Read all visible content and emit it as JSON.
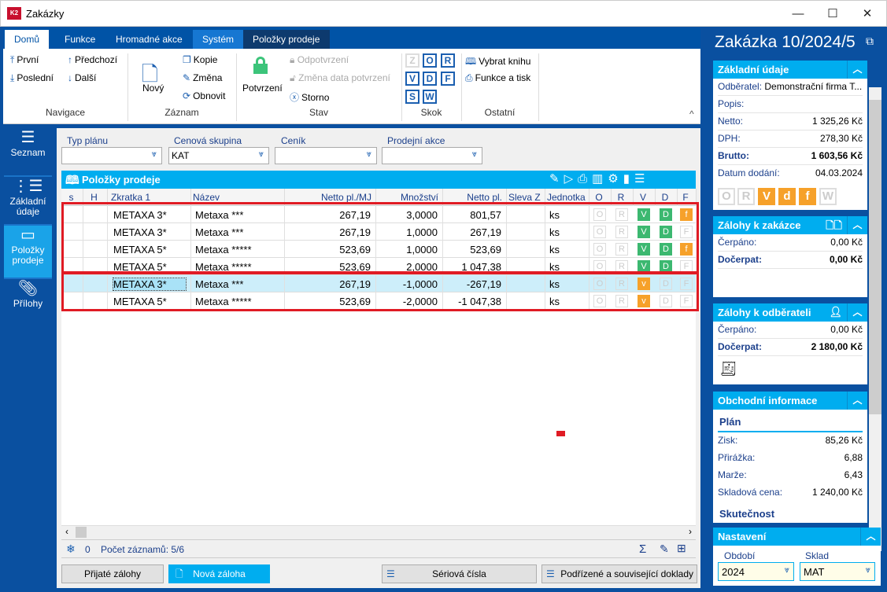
{
  "window": {
    "title": "Zakázky",
    "logo": "K2",
    "controls": [
      "minimize",
      "maximize",
      "close"
    ]
  },
  "ribbon": {
    "tabs": [
      "Domů",
      "Funkce",
      "Hromadné akce",
      "Systém",
      "Položky prodeje"
    ],
    "navigace": {
      "label": "Navigace",
      "items": [
        "První",
        "Poslední",
        "Předchozí",
        "Další"
      ]
    },
    "zaznam": {
      "label": "Záznam",
      "items": [
        "Nový",
        "Kopie",
        "Změna",
        "Obnovit"
      ]
    },
    "stav": {
      "label": "Stav",
      "items": [
        "Potvrzení",
        "Odpotvrzení",
        "Změna data potvrzení",
        "Storno"
      ]
    },
    "skok": {
      "label": "Skok",
      "items": [
        "Z",
        "O",
        "R",
        "V",
        "D",
        "F",
        "S",
        "W"
      ]
    },
    "ostatni": {
      "label": "Ostatní",
      "items": [
        "Vybrat knihu",
        "Funkce a tisk"
      ]
    }
  },
  "leftnav": [
    {
      "label": "Seznam",
      "icon": "hamburger-icon"
    },
    {
      "label": "Základní údaje",
      "icon": "list-icon"
    },
    {
      "label": "Položky prodeje",
      "icon": "box-icon",
      "active": true
    },
    {
      "label": "Přílohy",
      "icon": "paperclip-icon"
    }
  ],
  "filters": [
    {
      "label": "Typ plánu",
      "value": ""
    },
    {
      "label": "Cenová skupina",
      "value": "KAT"
    },
    {
      "label": "Ceník",
      "value": ""
    },
    {
      "label": "Prodejní akce",
      "value": ""
    }
  ],
  "grid": {
    "title": "Položky prodeje",
    "columns": [
      "s",
      "H",
      "Zkratka 1",
      "Název",
      "Netto pl./MJ",
      "Množství",
      "Netto pl.",
      "Sleva Z",
      "Jednotka",
      "O",
      "R",
      "V",
      "D",
      "F"
    ],
    "rows": [
      {
        "zkratka": "METAXA 3*",
        "nazev": "Metaxa ***",
        "mj": "267,19",
        "mnozstvi": "3,0000",
        "netto": "801,57",
        "jednotka": "ks",
        "v": "V",
        "d": "D",
        "f": "f",
        "f_on": true,
        "d_on": true,
        "v_color": "#3cb870"
      },
      {
        "zkratka": "METAXA 3*",
        "nazev": "Metaxa ***",
        "mj": "267,19",
        "mnozstvi": "1,0000",
        "netto": "267,19",
        "jednotka": "ks",
        "v": "V",
        "d": "D",
        "f": "F",
        "f_on": false,
        "d_on": true,
        "v_color": "#3cb870"
      },
      {
        "zkratka": "METAXA 5*",
        "nazev": "Metaxa *****",
        "mj": "523,69",
        "mnozstvi": "1,0000",
        "netto": "523,69",
        "jednotka": "ks",
        "v": "V",
        "d": "D",
        "f": "f",
        "f_on": true,
        "d_on": true,
        "v_color": "#3cb870"
      },
      {
        "zkratka": "METAXA 5*",
        "nazev": "Metaxa *****",
        "mj": "523,69",
        "mnozstvi": "2,0000",
        "netto": "1 047,38",
        "jednotka": "ks",
        "v": "V",
        "d": "D",
        "f": "F",
        "f_on": false,
        "d_on": true,
        "v_color": "#3cb870"
      },
      {
        "zkratka": "METAXA 3*",
        "nazev": "Metaxa ***",
        "mj": "267,19",
        "mnozstvi": "-1,0000",
        "netto": "-267,19",
        "jednotka": "ks",
        "v": "v",
        "d": "D",
        "f": "F",
        "f_on": false,
        "d_on": false,
        "v_color": "#f6a12a",
        "selected": true
      },
      {
        "zkratka": "METAXA 5*",
        "nazev": "Metaxa *****",
        "mj": "523,69",
        "mnozstvi": "-2,0000",
        "netto": "-1 047,38",
        "jednotka": "ks",
        "v": "v",
        "d": "D",
        "f": "F",
        "f_on": false,
        "d_on": false,
        "v_color": "#f6a12a"
      }
    ],
    "status": {
      "filter_count": "0",
      "records": "Počet záznamů: 5/6"
    }
  },
  "buttons": {
    "prijate": "Přijaté zálohy",
    "nova": "Nová záloha",
    "seriova": "Sériová čísla",
    "podrizene": "Podřízené a související doklady"
  },
  "right": {
    "title": "Zakázka 10/2024/5",
    "zakladni": {
      "header": "Základní údaje",
      "odberatel_k": "Odběratel:",
      "odberatel_v": "Demonstrační firma T...",
      "popis_k": "Popis:",
      "netto_k": "Netto:",
      "netto_v": "1 325,26 Kč",
      "dph_k": "DPH:",
      "dph_v": "278,30 Kč",
      "brutto_k": "Brutto:",
      "brutto_v": "1 603,56 Kč",
      "datum_k": "Datum dodání:",
      "datum_v": "04.03.2024",
      "states": [
        "O",
        "R",
        "V",
        "d",
        "f",
        "W"
      ]
    },
    "zalohy_zakazka": {
      "header": "Zálohy k zakázce",
      "cerpano_k": "Čerpáno:",
      "cerpano_v": "0,00 Kč",
      "docerpat_k": "Dočerpat:",
      "docerpat_v": "0,00 Kč"
    },
    "zalohy_odberatel": {
      "header": "Zálohy k odběrateli",
      "cerpano_k": "Čerpáno:",
      "cerpano_v": "0,00 Kč",
      "docerpat_k": "Dočerpat:",
      "docerpat_v": "2 180,00 Kč"
    },
    "obchodni": {
      "header": "Obchodní informace",
      "plan": "Plán",
      "zisk_k": "Zisk:",
      "zisk_v": "85,26 Kč",
      "prirazka_k": "Přirážka:",
      "prirazka_v": "6,88",
      "marze_k": "Marže:",
      "marze_v": "6,43",
      "sklad_k": "Skladová cena:",
      "sklad_v": "1 240,00 Kč",
      "skutecnost": "Skutečnost"
    },
    "nastaveni": {
      "header": "Nastavení",
      "obdobi_k": "Období",
      "obdobi_v": "2024",
      "sklad_k": "Sklad",
      "sklad_v": "MAT"
    }
  }
}
